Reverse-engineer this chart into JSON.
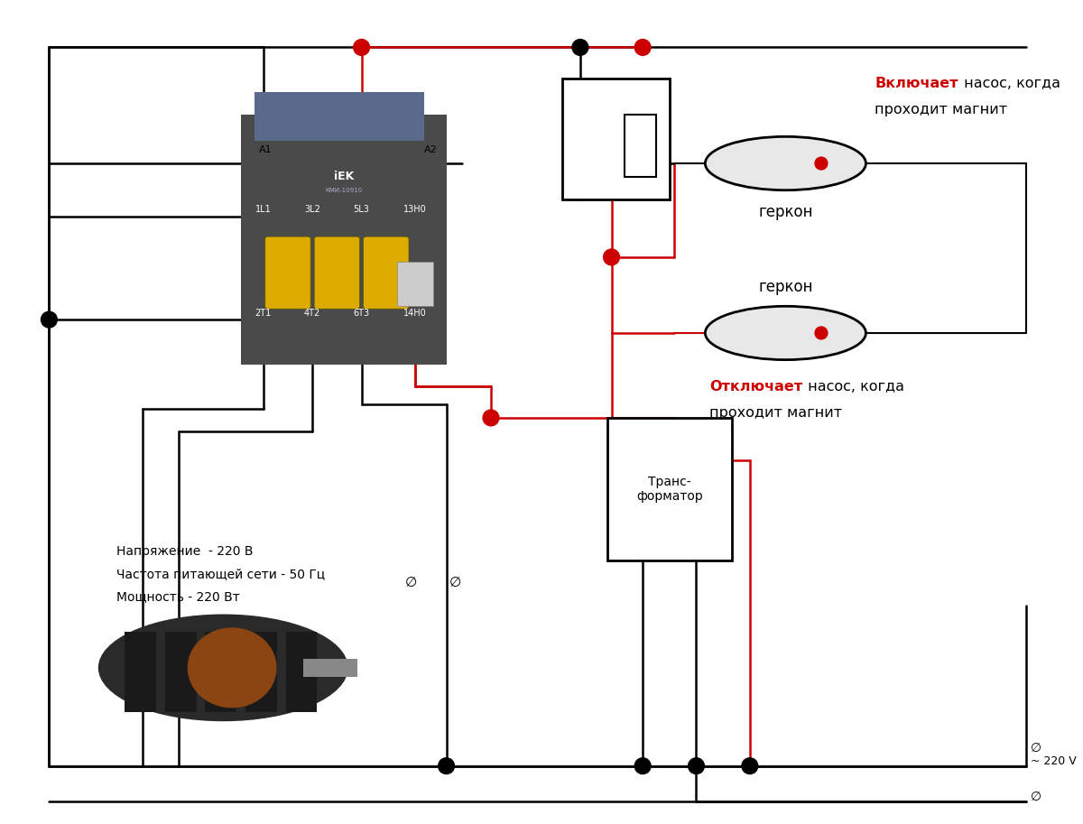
{
  "bg_color": "#ffffff",
  "line_color_black": "#000000",
  "line_color_red": "#cc0000",
  "text_on_bold": "Включает",
  "text_on_rest": " насос, когда",
  "text_on_line2": "проходит магнит",
  "text_off_bold": "Отключает",
  "text_off_rest": " насос, когда",
  "text_off_line2": "проходит магнит",
  "text_gerkon1": "геркон",
  "text_gerkon2": "геркон",
  "text_transformer": "Транс-\nформатор",
  "text_voltage_line1": "Напряжение  - 220 В",
  "text_voltage_line2": "Частота питающей сети - 50 Гц",
  "text_voltage_line3": "Мощность - 220 Вт",
  "text_220v": "~ 220 V",
  "label_A1": "A1",
  "label_A2": "A2",
  "label_1L1": "1L1",
  "label_3L2": "3L2",
  "label_5L3": "5L3",
  "label_13H0": "13H0",
  "label_2T1": "2T1",
  "label_4T2": "4T2",
  "label_6T3": "6T3",
  "label_14H0": "14H0"
}
